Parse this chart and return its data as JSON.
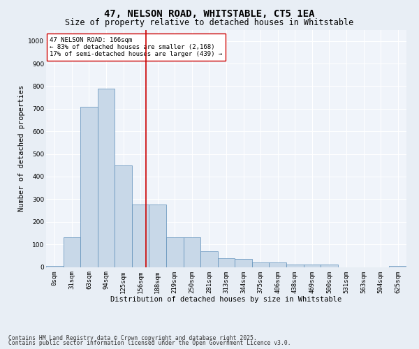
{
  "title": "47, NELSON ROAD, WHITSTABLE, CT5 1EA",
  "subtitle": "Size of property relative to detached houses in Whitstable",
  "xlabel": "Distribution of detached houses by size in Whitstable",
  "ylabel": "Number of detached properties",
  "bar_labels": [
    "0sqm",
    "31sqm",
    "63sqm",
    "94sqm",
    "125sqm",
    "156sqm",
    "188sqm",
    "219sqm",
    "250sqm",
    "281sqm",
    "313sqm",
    "344sqm",
    "375sqm",
    "406sqm",
    "438sqm",
    "469sqm",
    "500sqm",
    "531sqm",
    "563sqm",
    "594sqm",
    "625sqm"
  ],
  "bar_values": [
    5,
    130,
    710,
    790,
    450,
    275,
    275,
    130,
    130,
    70,
    40,
    35,
    20,
    20,
    10,
    10,
    10,
    0,
    0,
    0,
    5
  ],
  "bar_color": "#c8d8e8",
  "bar_edge_color": "#5b8db8",
  "vline_color": "#cc0000",
  "annotation_text": "47 NELSON ROAD: 166sqm\n← 83% of detached houses are smaller (2,168)\n17% of semi-detached houses are larger (439) →",
  "annotation_box_color": "#ffffff",
  "annotation_box_edge": "#cc0000",
  "ylim": [
    0,
    1050
  ],
  "yticks": [
    0,
    100,
    200,
    300,
    400,
    500,
    600,
    700,
    800,
    900,
    1000
  ],
  "footnote1": "Contains HM Land Registry data © Crown copyright and database right 2025.",
  "footnote2": "Contains public sector information licensed under the Open Government Licence v3.0.",
  "bg_color": "#e8eef5",
  "plot_bg_color": "#f0f4fa",
  "grid_color": "#ffffff",
  "title_fontsize": 10,
  "subtitle_fontsize": 8.5,
  "axis_label_fontsize": 7.5,
  "tick_fontsize": 6.5,
  "annotation_fontsize": 6.5,
  "footnote_fontsize": 5.8
}
